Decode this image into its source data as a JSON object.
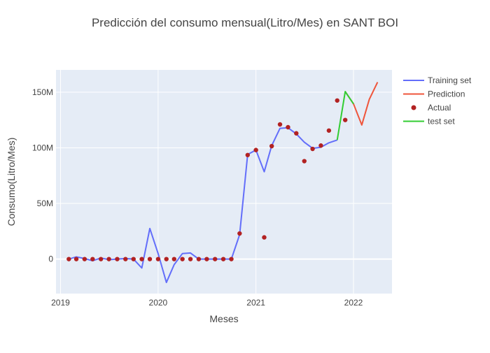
{
  "chart_data": {
    "type": "line",
    "title": "Predicción del consumo mensual(Litro/Mes) en SANT BOI",
    "xlabel": "Meses",
    "ylabel": "Consumo(Litro/Mes)",
    "x_ticks": [
      "2019",
      "2020",
      "2021",
      "2022"
    ],
    "y_ticks": [
      {
        "value": 0,
        "label": "0"
      },
      {
        "value": 50000000,
        "label": "50M"
      },
      {
        "value": 100000000,
        "label": "100M"
      },
      {
        "value": 150000000,
        "label": "150M"
      }
    ],
    "xlim": [
      "2018-12-15",
      "2022-05-25"
    ],
    "ylim": [
      -31000000,
      170000000
    ],
    "grid": true,
    "legend_position": "top-right",
    "colors": {
      "plot_bg": "#e5ecf6",
      "grid": "#ffffff",
      "training": "#636efa",
      "prediction": "#ef553b",
      "actual": "#b22222",
      "test": "#32cd32",
      "text": "#444444",
      "title": "#444444"
    },
    "series": [
      {
        "name": "Training set",
        "kind": "line",
        "color": "#636efa",
        "points": [
          {
            "x": "2019-02-01",
            "y": 0
          },
          {
            "x": "2019-03-01",
            "y": 2000000
          },
          {
            "x": "2019-04-01",
            "y": 500000
          },
          {
            "x": "2019-05-01",
            "y": -1500000
          },
          {
            "x": "2019-06-01",
            "y": 1000000
          },
          {
            "x": "2019-07-01",
            "y": -500000
          },
          {
            "x": "2019-08-01",
            "y": 0
          },
          {
            "x": "2019-09-01",
            "y": 500000
          },
          {
            "x": "2019-10-01",
            "y": 0
          },
          {
            "x": "2019-11-01",
            "y": -8000000
          },
          {
            "x": "2019-12-01",
            "y": 27500000
          },
          {
            "x": "2020-01-01",
            "y": 5000000
          },
          {
            "x": "2020-02-01",
            "y": -21000000
          },
          {
            "x": "2020-03-01",
            "y": -5000000
          },
          {
            "x": "2020-04-01",
            "y": 5000000
          },
          {
            "x": "2020-05-01",
            "y": 5500000
          },
          {
            "x": "2020-06-01",
            "y": 0
          },
          {
            "x": "2020-07-01",
            "y": 0
          },
          {
            "x": "2020-08-01",
            "y": 0
          },
          {
            "x": "2020-09-01",
            "y": 0
          },
          {
            "x": "2020-10-01",
            "y": 0
          },
          {
            "x": "2020-11-01",
            "y": 22000000
          },
          {
            "x": "2020-12-01",
            "y": 94000000
          },
          {
            "x": "2021-01-01",
            "y": 98000000
          },
          {
            "x": "2021-02-01",
            "y": 78500000
          },
          {
            "x": "2021-03-01",
            "y": 102000000
          },
          {
            "x": "2021-04-01",
            "y": 117500000
          },
          {
            "x": "2021-05-01",
            "y": 118000000
          },
          {
            "x": "2021-06-01",
            "y": 112500000
          },
          {
            "x": "2021-07-01",
            "y": 105000000
          },
          {
            "x": "2021-08-01",
            "y": 99500000
          },
          {
            "x": "2021-09-01",
            "y": 100500000
          },
          {
            "x": "2021-10-01",
            "y": 104500000
          },
          {
            "x": "2021-11-01",
            "y": 107000000
          }
        ]
      },
      {
        "name": "Prediction",
        "kind": "line",
        "color": "#ef553b",
        "points": [
          {
            "x": "2021-12-01",
            "y": 150500000
          },
          {
            "x": "2022-01-01",
            "y": 139500000
          },
          {
            "x": "2022-02-01",
            "y": 120500000
          },
          {
            "x": "2022-03-01",
            "y": 143500000
          },
          {
            "x": "2022-04-01",
            "y": 159000000
          }
        ]
      },
      {
        "name": "Actual",
        "kind": "markers",
        "color": "#b22222",
        "points": [
          {
            "x": "2019-02-01",
            "y": 0
          },
          {
            "x": "2019-03-01",
            "y": 0
          },
          {
            "x": "2019-04-01",
            "y": 0
          },
          {
            "x": "2019-05-01",
            "y": 0
          },
          {
            "x": "2019-06-01",
            "y": 0
          },
          {
            "x": "2019-07-01",
            "y": 0
          },
          {
            "x": "2019-08-01",
            "y": 0
          },
          {
            "x": "2019-09-01",
            "y": 0
          },
          {
            "x": "2019-10-01",
            "y": 0
          },
          {
            "x": "2019-11-01",
            "y": 0
          },
          {
            "x": "2019-12-01",
            "y": 0
          },
          {
            "x": "2020-01-01",
            "y": 0
          },
          {
            "x": "2020-02-01",
            "y": 0
          },
          {
            "x": "2020-03-01",
            "y": 0
          },
          {
            "x": "2020-04-01",
            "y": 0
          },
          {
            "x": "2020-05-01",
            "y": 0
          },
          {
            "x": "2020-06-01",
            "y": 0
          },
          {
            "x": "2020-07-01",
            "y": 0
          },
          {
            "x": "2020-08-01",
            "y": 0
          },
          {
            "x": "2020-09-01",
            "y": 0
          },
          {
            "x": "2020-10-01",
            "y": 0
          },
          {
            "x": "2020-11-01",
            "y": 23000000
          },
          {
            "x": "2020-12-01",
            "y": 93500000
          },
          {
            "x": "2021-01-01",
            "y": 98000000
          },
          {
            "x": "2021-02-01",
            "y": 19500000
          },
          {
            "x": "2021-03-01",
            "y": 101500000
          },
          {
            "x": "2021-04-01",
            "y": 121000000
          },
          {
            "x": "2021-05-01",
            "y": 118500000
          },
          {
            "x": "2021-06-01",
            "y": 113000000
          },
          {
            "x": "2021-07-01",
            "y": 88000000
          },
          {
            "x": "2021-08-01",
            "y": 99000000
          },
          {
            "x": "2021-09-01",
            "y": 102000000
          },
          {
            "x": "2021-10-01",
            "y": 115500000
          },
          {
            "x": "2021-11-01",
            "y": 142500000
          },
          {
            "x": "2021-12-01",
            "y": 125000000
          }
        ]
      },
      {
        "name": "test set",
        "kind": "line",
        "color": "#32cd32",
        "points": [
          {
            "x": "2021-11-01",
            "y": 107000000
          },
          {
            "x": "2021-12-01",
            "y": 150500000
          },
          {
            "x": "2022-01-01",
            "y": 139500000
          }
        ]
      }
    ]
  }
}
